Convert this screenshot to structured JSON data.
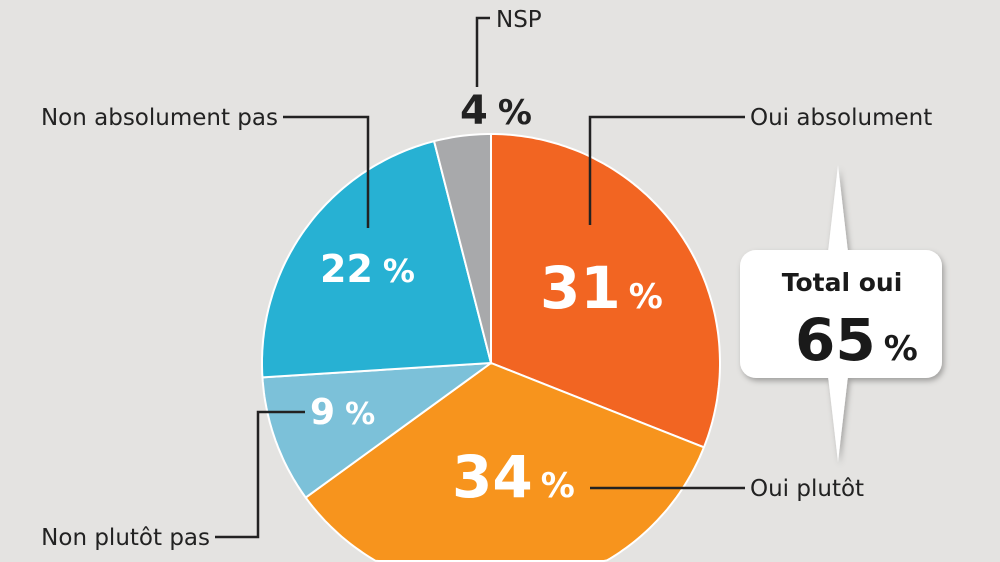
{
  "chart_data": {
    "type": "pie",
    "title": "",
    "unit": "%",
    "slices": [
      {
        "label": "Oui absolument",
        "value": 31,
        "display": "31",
        "color": "#f26522"
      },
      {
        "label": "Oui plutôt",
        "value": 34,
        "display": "34",
        "color": "#f7941d"
      },
      {
        "label": "Non plutôt pas",
        "value": 9,
        "display": "9",
        "color": "#7cc1d9"
      },
      {
        "label": "Non absolument pas",
        "value": 22,
        "display": "22",
        "color": "#27b1d3"
      },
      {
        "label": "NSP",
        "value": 4,
        "display": "4",
        "color": "#a8a9ab"
      }
    ],
    "callout": {
      "title": "Total oui",
      "value": "65",
      "unit": "%"
    }
  }
}
